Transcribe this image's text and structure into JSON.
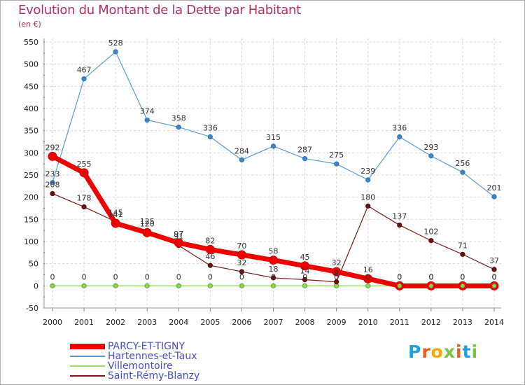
{
  "chart_data": {
    "type": "line",
    "title": "Evolution du Montant de la Dette par Habitant",
    "subtitle": "(en €)",
    "xlabel": "",
    "ylabel": "",
    "ylim": [
      -50,
      550
    ],
    "yticks": [
      "-50",
      "0",
      "50",
      "100",
      "150",
      "200",
      "250",
      "300",
      "350",
      "400",
      "450",
      "500",
      "550"
    ],
    "categories": [
      "2000",
      "2001",
      "2002",
      "2003",
      "2004",
      "2005",
      "2006",
      "2007",
      "2008",
      "2009",
      "2010",
      "2011",
      "2012",
      "2013",
      "2014"
    ],
    "grid": "horizontal dashed",
    "legend_position": "bottom-left",
    "series": [
      {
        "name": "PARCY-ET-TIGNY",
        "color": "#ee0000",
        "values": [
          292,
          255,
          141,
          120,
          97,
          82,
          70,
          58,
          45,
          32,
          16,
          0,
          0,
          0,
          0
        ],
        "labels": [
          "292",
          "255",
          "141",
          "120",
          "97",
          "82",
          "70",
          "58",
          "45",
          "32",
          "16",
          "0",
          "0",
          "0",
          "0"
        ]
      },
      {
        "name": "Hartennes-et-Taux",
        "color": "#5b9bd5",
        "values": [
          233,
          467,
          528,
          374,
          358,
          336,
          284,
          315,
          287,
          275,
          239,
          336,
          293,
          256,
          201
        ],
        "labels": [
          "233",
          "467",
          "528",
          "374",
          "358",
          "336",
          "284",
          "315",
          "287",
          "275",
          "239",
          "336",
          "293",
          "256",
          "201"
        ]
      },
      {
        "name": "Villemontoire",
        "color": "#99dd66",
        "values": [
          0,
          0,
          0,
          0,
          0,
          0,
          0,
          0,
          0,
          0,
          0,
          0,
          0,
          0,
          0
        ],
        "labels": [
          "0",
          "0",
          "0",
          "0",
          "0",
          "0",
          "0",
          "0",
          "0",
          "0",
          "0",
          "0",
          "0",
          "0",
          "0"
        ]
      },
      {
        "name": "Saint-Rémy-Blanzy",
        "color": "#7a1a1a",
        "values": [
          208,
          178,
          145,
          125,
          91,
          46,
          32,
          18,
          14,
          9,
          180,
          137,
          102,
          71,
          37
        ],
        "labels": [
          "208",
          "178",
          "145",
          "125",
          "91",
          "46",
          "32",
          "18",
          "14",
          "9",
          "180",
          "137",
          "102",
          "71",
          "37"
        ]
      }
    ]
  },
  "logo": {
    "text": "Proxiti",
    "colors": [
      "#1aa3e0",
      "#e8601c",
      "#f5a800",
      "#7bc144",
      "#e8601c",
      "#1aa3e0",
      "#7bc144"
    ]
  }
}
